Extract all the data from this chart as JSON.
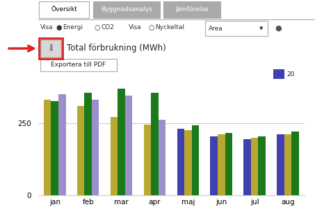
{
  "months": [
    "jan",
    "feb",
    "mar",
    "apr",
    "maj",
    "jun",
    "jul",
    "aug"
  ],
  "bar_groups": [
    {
      "colors": [
        "#b8a832",
        "#1a7a1a",
        "#9b8fcc"
      ],
      "values": [
        330,
        325,
        350
      ]
    },
    {
      "colors": [
        "#b8a832",
        "#1a7a1a",
        "#9b8fcc"
      ],
      "values": [
        310,
        355,
        330
      ]
    },
    {
      "colors": [
        "#b8a832",
        "#1a7a1a",
        "#9b8fcc"
      ],
      "values": [
        270,
        370,
        345
      ]
    },
    {
      "colors": [
        "#b8a832",
        "#1a7a1a",
        "#9b8fcc"
      ],
      "values": [
        245,
        355,
        262
      ]
    },
    {
      "colors": [
        "#4040b0",
        "#b8a832",
        "#1a7a1a"
      ],
      "values": [
        230,
        225,
        242
      ]
    },
    {
      "colors": [
        "#4040b0",
        "#b8a832",
        "#1a7a1a"
      ],
      "values": [
        205,
        210,
        215
      ]
    },
    {
      "colors": [
        "#4040b0",
        "#b8a832",
        "#1a7a1a"
      ],
      "values": [
        195,
        200,
        205
      ]
    },
    {
      "colors": [
        "#4040b0",
        "#b8a832",
        "#1a7a1a"
      ],
      "values": [
        210,
        210,
        220
      ]
    }
  ],
  "title": "Total förbrukning (MWh)",
  "tooltip_text": "Exportera till PDF",
  "legend_color": "#4040b0",
  "legend_label": "20",
  "tabs": [
    "Översikt",
    "Byggnadsanalys",
    "Jämförelse"
  ],
  "active_tab": "Översikt",
  "ylim": [
    0,
    400
  ],
  "yticks": [
    0,
    250
  ],
  "bg_color": "#ffffff",
  "grid_color": "#cccccc",
  "arrow_color": "#dd2222",
  "tab_active_bg": "#ffffff",
  "tab_inactive_bg": "#aaaaaa",
  "tab_text_active": "#000000",
  "tab_text_inactive": "#ffffff"
}
